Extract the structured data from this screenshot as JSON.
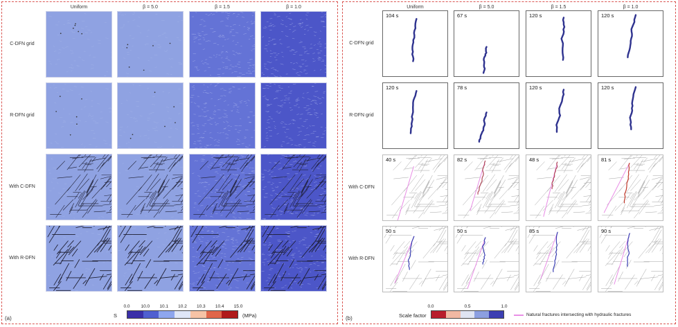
{
  "panel_a": {
    "tag": "(a)",
    "columns": [
      "Uniform",
      "β = 5.0",
      "β = 1.5",
      "β = 1.0"
    ],
    "rows": [
      "C-DFN grid",
      "R-DFN grid",
      "With C-DFN",
      "With R-DFN"
    ],
    "legend": {
      "symbol": "S",
      "unit": "(MPa)",
      "ticks": [
        "0.0",
        "10.0",
        "10.1",
        "10.2",
        "10.3",
        "10.4",
        "15.0"
      ],
      "colors": [
        "#3a2fa8",
        "#4f5fd0",
        "#8ea6ee",
        "#dfe6f7",
        "#f6c3a6",
        "#e0664a",
        "#b01a1a"
      ]
    },
    "cell_colors": [
      "#8fa2e2",
      "#8fa2e2",
      "#6473d6",
      "#4c56c8"
    ]
  },
  "panel_b": {
    "tag": "(b)",
    "columns": [
      "Uniform",
      "β = 5.0",
      "β = 1.5",
      "β = 1.0"
    ],
    "rows": [
      "C-DFN grid",
      "R-DFN grid",
      "With C-DFN",
      "With R-DFN"
    ],
    "times": [
      [
        "104 s",
        "67 s",
        "120 s",
        "120 s"
      ],
      [
        "120 s",
        "78 s",
        "120 s",
        "120 s"
      ],
      [
        "40 s",
        "82 s",
        "48 s",
        "81 s"
      ],
      [
        "50 s",
        "50 s",
        "85 s",
        "90 s"
      ]
    ],
    "legend": {
      "title": "Scale factor",
      "ticks": [
        "0.0",
        "0.5",
        "1.0"
      ],
      "colors": [
        "#b81d2c",
        "#f2b8a3",
        "#dfe4f2",
        "#8c9fe0",
        "#3c3fb2"
      ],
      "fracture_label": "Natural fractures intersecting with hydraulic fractures",
      "fracture_color": "#e98fe6"
    }
  }
}
